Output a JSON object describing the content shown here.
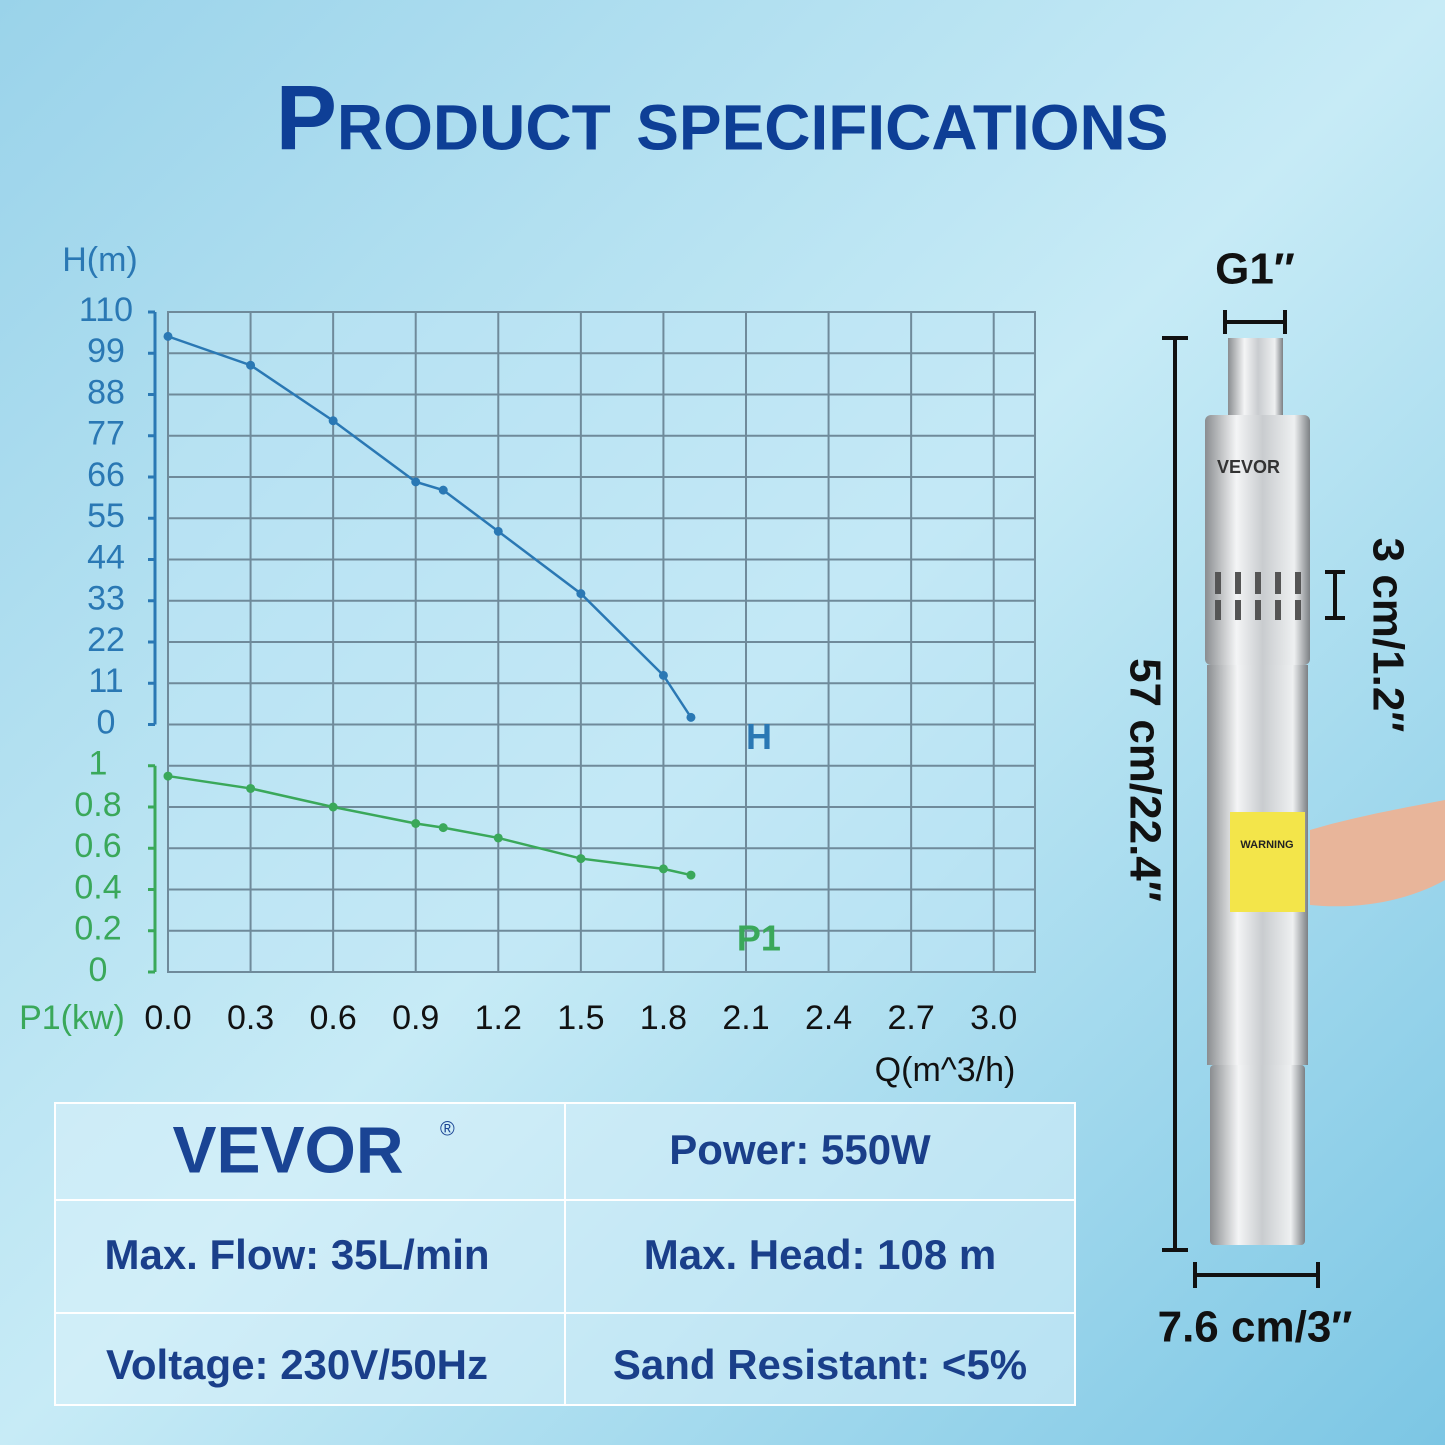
{
  "title": "Product specifications",
  "chart_data": {
    "type": "line",
    "x_label": "Q(m^3/h)",
    "y_label": "H(m)",
    "y2_label": "P1(kw)",
    "x": [
      0.0,
      0.3,
      0.6,
      0.9,
      1.0,
      1.2,
      1.5,
      1.8,
      1.9
    ],
    "series": [
      {
        "name": "H",
        "color": "#2a78b4",
        "values": [
          103.5,
          95.8,
          81,
          64.7,
          62.5,
          51.5,
          34.9,
          13.1,
          1.9
        ]
      },
      {
        "name": "P1",
        "color": "#3aa85a",
        "axis": "y2",
        "values": [
          0.95,
          0.89,
          0.8,
          0.72,
          0.7,
          0.65,
          0.55,
          0.5,
          0.47
        ]
      }
    ],
    "xlim": [
      0,
      3.15
    ],
    "xticks": [
      {
        "value": 0,
        "label": "0.0"
      },
      0.3,
      0.6,
      0.9,
      1.2,
      1.5,
      1.8,
      2.1,
      2.4,
      2.7,
      {
        "value": 3,
        "label": "3.0"
      }
    ],
    "ylim": [
      -66,
      110
    ],
    "yticks": [
      0,
      11,
      22,
      33,
      44,
      55,
      66,
      77,
      88,
      99,
      110
    ],
    "y2lim": [
      0,
      3.2
    ],
    "y2ticks": [
      0,
      0.2,
      0.4,
      0.6,
      0.8,
      1
    ],
    "grid": true
  },
  "specs": {
    "brand": "VEVOR",
    "brand_mark": "®",
    "rows": [
      [
        "Power: 550W"
      ],
      [
        "Max. Flow: 35L/min",
        "Max. Head: 108 m"
      ],
      [
        "Voltage: 230V/50Hz",
        "Sand Resistant: <5%"
      ]
    ]
  },
  "pump": {
    "outlet": "G1″",
    "slot_height": "3 cm/1.2″",
    "length": "57 cm/22.4″",
    "diameter": "7.6 cm/3″",
    "label": "VEVOR",
    "warning": "WARNING"
  }
}
